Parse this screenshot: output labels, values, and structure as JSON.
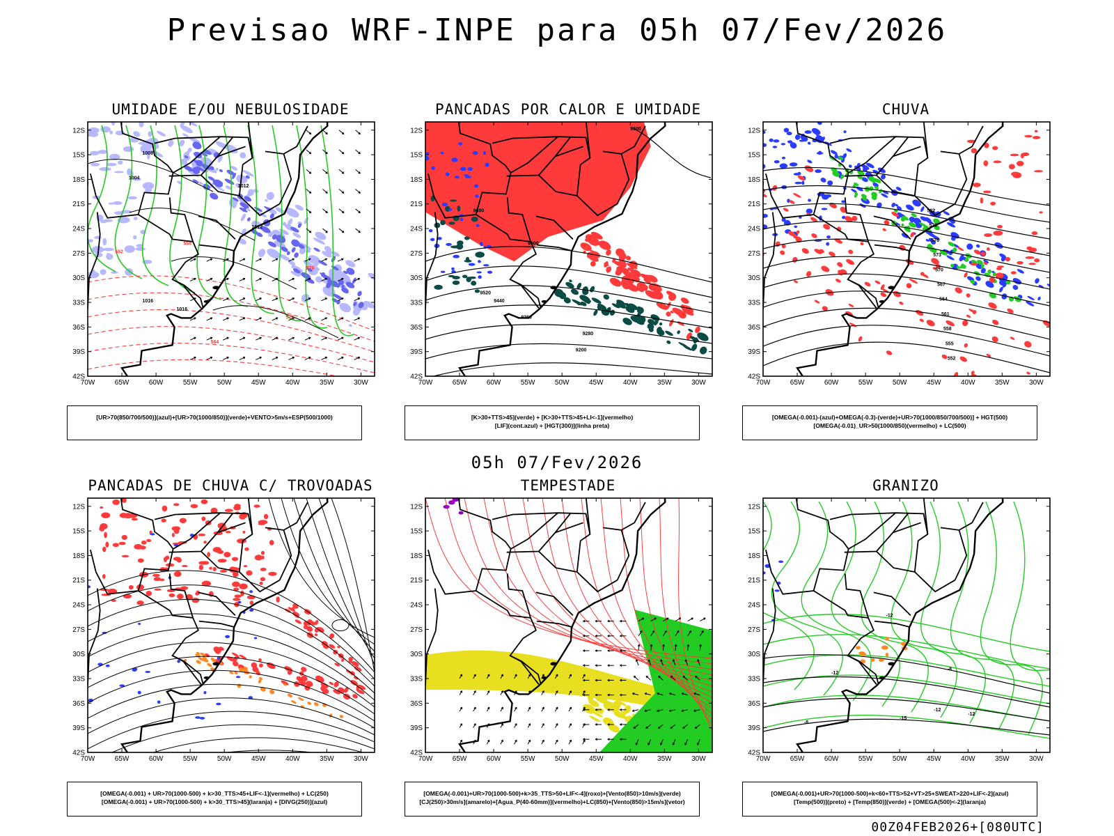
{
  "title": "Previsao WRF-INPE  para 05h 07/Fev/2026",
  "mid_title": "05h 07/Fev/2026",
  "footer": "00Z04FEB2026+[080UTC]",
  "lat_labels": [
    "12S",
    "15S",
    "18S",
    "21S",
    "24S",
    "27S",
    "30S",
    "33S",
    "36S",
    "39S",
    "42S"
  ],
  "lon_labels": [
    "70W",
    "65W",
    "60W",
    "55W",
    "50W",
    "45W",
    "40W",
    "35W",
    "30W"
  ],
  "panels": [
    {
      "title": "UMIDADE E/OU NEBULOSIDADE",
      "legend": [
        "[UR>70(850/700/500)](azul)+[UR>70(1000/850)](verde)+VENTO>5m/s+ESP(500/1000)"
      ],
      "contour_labels": [
        "1008",
        "1012",
        "1012",
        "1016",
        "1016",
        "576",
        "570",
        "564",
        "558",
        "552",
        "1004"
      ]
    },
    {
      "title": "PANCADAS POR CALOR E UMIDADE",
      "legend": [
        "[K>30+TTS>45](verde) + [K>30+TTS>45+LI<-1](vermelho)",
        "[LIF](cont.azul) + [HGT(300)](linha preta)"
      ],
      "contour_labels": [
        "9600",
        "9600",
        "9520",
        "9440",
        "9360",
        "9280",
        "9200",
        "9600"
      ]
    },
    {
      "title": "CHUVA",
      "legend": [
        "[OMEGA(-0.001)-(azul)+OMEGA(-0.3)-(verde)+UR>70(1000/850/700/500)] + HGT(500)",
        "[OMEGA(-0.01)_UR>50(1000/850)(vermelho) + LC(500)"
      ],
      "contour_labels": [
        "582",
        "579",
        "576",
        "573",
        "570",
        "567",
        "564",
        "561",
        "558",
        "555",
        "552"
      ]
    },
    {
      "title": "PANCADAS DE CHUVA C/ TROVOADAS",
      "legend": [
        "[OMEGA(-0.001) + UR>70(1000-500) + k>30_TTS>45+LIF<-1](vermelho) + LC(250)",
        "[OMEGA(-0.001) + UR>70(1000-500) + k>30_TTS>45](laranja) + [DIVG(250)](azul)"
      ],
      "contour_labels": []
    },
    {
      "title": "TEMPESTADE",
      "legend": [
        "[OMEGA(-0.001)+UR>70(1000-500)+k>35_TTS>50+LIF<-4](roxo)+[Vento(850)>10m/s](verde)",
        "[CJ(250)>30m/s](amarelo)+[Agua_P(40-60mm)](vermelho)+LC(850)+[Vento(850)>15m/s](vetor)"
      ],
      "contour_labels": []
    },
    {
      "title": "GRANIZO",
      "legend": [
        "[OMEGA(-0.001)+UR>70(1000-500)+k<60+TTS>52+VT>25+SWEAT>220+LIF<-2](azul)",
        "[Temp(500)](preto) + [Temp(850)](verde) + [OMEGA(500)<-2](laranja)"
      ],
      "contour_labels": [
        "-12",
        "-12",
        "-8",
        "-12",
        "-15",
        "-12",
        "-8"
      ]
    }
  ],
  "colors": {
    "blue": "#2a3cff",
    "green": "#22cc22",
    "red": "#ff3a3a",
    "lightblue": "#b8b8ff",
    "dark": "#0b4b45",
    "yellow": "#e8df20",
    "orange": "#ff8820",
    "purple": "#9a00c8"
  }
}
